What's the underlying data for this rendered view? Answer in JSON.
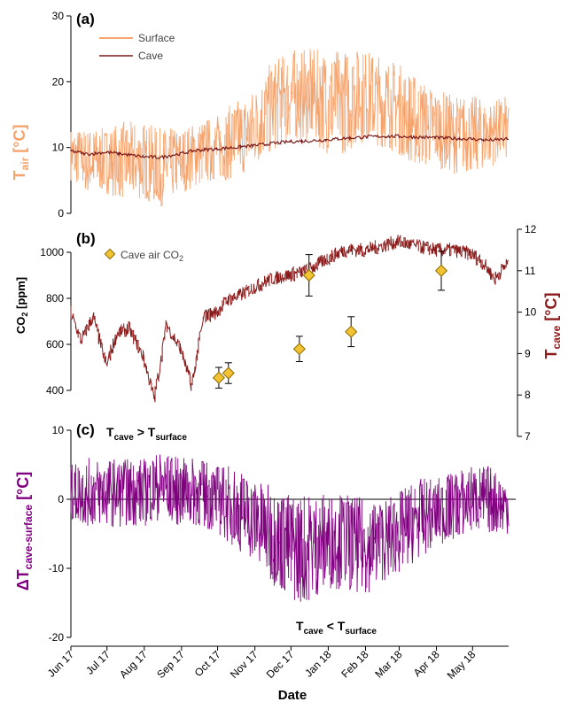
{
  "chart_data": [
    {
      "panel_label": "(a)",
      "type": "line",
      "ylabel": "T",
      "ylabel_sub": "air",
      "ylabel_unit": " [°C]",
      "ylim": [
        0,
        30
      ],
      "yticks": [
        0,
        10,
        20,
        30
      ],
      "legend_position": "top-left",
      "series": [
        {
          "name": "Surface",
          "color": "#f6a46e",
          "x": [
            "2017-06-01",
            "2017-06-15",
            "2017-07-01",
            "2017-07-15",
            "2017-08-01",
            "2017-08-15",
            "2017-09-01",
            "2017-09-15",
            "2017-10-01",
            "2017-10-15",
            "2017-11-01",
            "2017-11-15",
            "2017-12-01",
            "2017-12-15",
            "2018-01-01",
            "2018-01-15",
            "2018-02-01",
            "2018-02-15",
            "2018-03-01",
            "2018-03-15",
            "2018-04-01",
            "2018-04-15",
            "2018-05-01",
            "2018-05-15",
            "2018-05-31"
          ],
          "mean": [
            9,
            8,
            8,
            8,
            8,
            7,
            8,
            9,
            10,
            11,
            13,
            16,
            18,
            18,
            17,
            17,
            18,
            17,
            16,
            14,
            13,
            12,
            12,
            12,
            13
          ],
          "spread": [
            4,
            5,
            5,
            6,
            6,
            6,
            5,
            5,
            5,
            6,
            6,
            7,
            7,
            7,
            8,
            8,
            7,
            7,
            7,
            7,
            6,
            6,
            6,
            5,
            5
          ]
        },
        {
          "name": "Cave",
          "color": "#7a1a1a",
          "x": [
            "2017-06-01",
            "2017-06-15",
            "2017-07-01",
            "2017-07-15",
            "2017-08-01",
            "2017-08-15",
            "2017-09-01",
            "2017-09-15",
            "2017-10-01",
            "2017-10-15",
            "2017-11-01",
            "2017-11-15",
            "2017-12-01",
            "2017-12-15",
            "2018-01-01",
            "2018-01-15",
            "2018-02-01",
            "2018-02-15",
            "2018-03-01",
            "2018-03-15",
            "2018-04-01",
            "2018-04-15",
            "2018-05-01",
            "2018-05-15",
            "2018-05-31"
          ],
          "y": [
            9.5,
            9.0,
            9.3,
            9.0,
            8.6,
            8.5,
            9.1,
            9.6,
            9.8,
            10.0,
            10.3,
            10.6,
            10.9,
            11.0,
            11.2,
            11.4,
            11.6,
            11.7,
            11.7,
            11.6,
            11.5,
            11.4,
            11.3,
            11.1,
            11.3
          ]
        }
      ]
    },
    {
      "panel_label": "(b)",
      "type": "line",
      "ylabel_left": "CO",
      "ylabel_left_sub": "2",
      "ylabel_left_unit": " [ppm]",
      "ylim_left": [
        200,
        1100
      ],
      "yticks_left": [
        400,
        600,
        800,
        1000
      ],
      "ylabel_right": "T",
      "ylabel_right_sub": "cave",
      "ylabel_right_unit": " [°C]",
      "ylim_right": [
        7,
        12
      ],
      "yticks_right": [
        7,
        8,
        9,
        10,
        11,
        12
      ],
      "legend_position": "top-left",
      "scatter": {
        "name": "Cave air CO",
        "name_sub": "2",
        "color": "#f2c232",
        "points": [
          {
            "x": "2017-10-02",
            "y": 455,
            "err": 45
          },
          {
            "x": "2017-10-10",
            "y": 475,
            "err": 45
          },
          {
            "x": "2017-12-08",
            "y": 580,
            "err": 55
          },
          {
            "x": "2017-12-16",
            "y": 900,
            "err": 90
          },
          {
            "x": "2018-01-20",
            "y": 655,
            "err": 65
          },
          {
            "x": "2018-04-05",
            "y": 920,
            "err": 85
          }
        ]
      },
      "cave_line": {
        "color": "#8b1a1a",
        "x": [
          "2017-06-01",
          "2017-06-10",
          "2017-06-20",
          "2017-07-01",
          "2017-07-10",
          "2017-07-20",
          "2017-08-01",
          "2017-08-10",
          "2017-08-20",
          "2017-09-01",
          "2017-09-10",
          "2017-09-20",
          "2017-10-01",
          "2017-10-10",
          "2017-10-20",
          "2017-11-01",
          "2017-11-15",
          "2017-12-01",
          "2017-12-15",
          "2018-01-01",
          "2018-01-15",
          "2018-02-01",
          "2018-02-15",
          "2018-03-01",
          "2018-03-15",
          "2018-04-01",
          "2018-04-15",
          "2018-05-01",
          "2018-05-10",
          "2018-05-20",
          "2018-05-31"
        ],
        "y": [
          10.0,
          9.3,
          9.9,
          8.7,
          9.5,
          9.6,
          8.9,
          7.9,
          9.7,
          9.1,
          8.2,
          9.9,
          10.0,
          10.3,
          10.4,
          10.6,
          10.8,
          10.9,
          11.0,
          11.3,
          11.5,
          11.5,
          11.6,
          11.7,
          11.6,
          11.5,
          11.5,
          11.4,
          11.2,
          10.8,
          11.2
        ]
      }
    },
    {
      "panel_label": "(c)",
      "type": "line",
      "ylabel": "ΔT",
      "ylabel_sub": "cave-surface",
      "ylabel_unit": " [°C]",
      "ylim": [
        -20,
        10
      ],
      "yticks": [
        -20,
        -10,
        0,
        10
      ],
      "color": "#800080",
      "x": [
        "2017-06-01",
        "2017-06-15",
        "2017-07-01",
        "2017-07-15",
        "2017-08-01",
        "2017-08-15",
        "2017-09-01",
        "2017-09-15",
        "2017-10-01",
        "2017-10-15",
        "2017-11-01",
        "2017-11-15",
        "2017-12-01",
        "2017-12-15",
        "2018-01-01",
        "2018-01-15",
        "2018-02-01",
        "2018-02-15",
        "2018-03-01",
        "2018-03-15",
        "2018-04-01",
        "2018-04-15",
        "2018-05-01",
        "2018-05-15",
        "2018-05-31"
      ],
      "mean": [
        1,
        1,
        1,
        1,
        1,
        2,
        1,
        1,
        0,
        -1,
        -3,
        -5,
        -7,
        -7,
        -6,
        -6,
        -7,
        -6,
        -5,
        -3,
        -2,
        -1,
        0,
        0,
        -1
      ],
      "spread": [
        4,
        5,
        5,
        5,
        5,
        5,
        5,
        5,
        5,
        6,
        6,
        7,
        8,
        8,
        7,
        7,
        7,
        6,
        6,
        6,
        5,
        5,
        5,
        5,
        4
      ],
      "annotation_top": {
        "text": "T",
        "sub1": "cave",
        "op": " > T",
        "sub2": "surface"
      },
      "annotation_bottom": {
        "text": "T",
        "sub1": "cave",
        "op": " < T",
        "sub2": "surface"
      }
    }
  ],
  "x_axis": {
    "xlabel": "Date",
    "range": [
      "2017-06-01",
      "2018-05-31"
    ],
    "ticks": [
      {
        "date": "2017-06-01",
        "label": "Jun 17"
      },
      {
        "date": "2017-07-01",
        "label": "Jul 17"
      },
      {
        "date": "2017-08-01",
        "label": "Aug 17"
      },
      {
        "date": "2017-09-01",
        "label": "Sep 17"
      },
      {
        "date": "2017-10-01",
        "label": "Oct 17"
      },
      {
        "date": "2017-11-01",
        "label": "Nov 17"
      },
      {
        "date": "2017-12-01",
        "label": "Dec 17"
      },
      {
        "date": "2018-01-01",
        "label": "Jan 18"
      },
      {
        "date": "2018-02-01",
        "label": "Feb 18"
      },
      {
        "date": "2018-03-01",
        "label": "Mar 18"
      },
      {
        "date": "2018-04-01",
        "label": "Apr 18"
      },
      {
        "date": "2018-05-01",
        "label": "May 18"
      }
    ]
  }
}
